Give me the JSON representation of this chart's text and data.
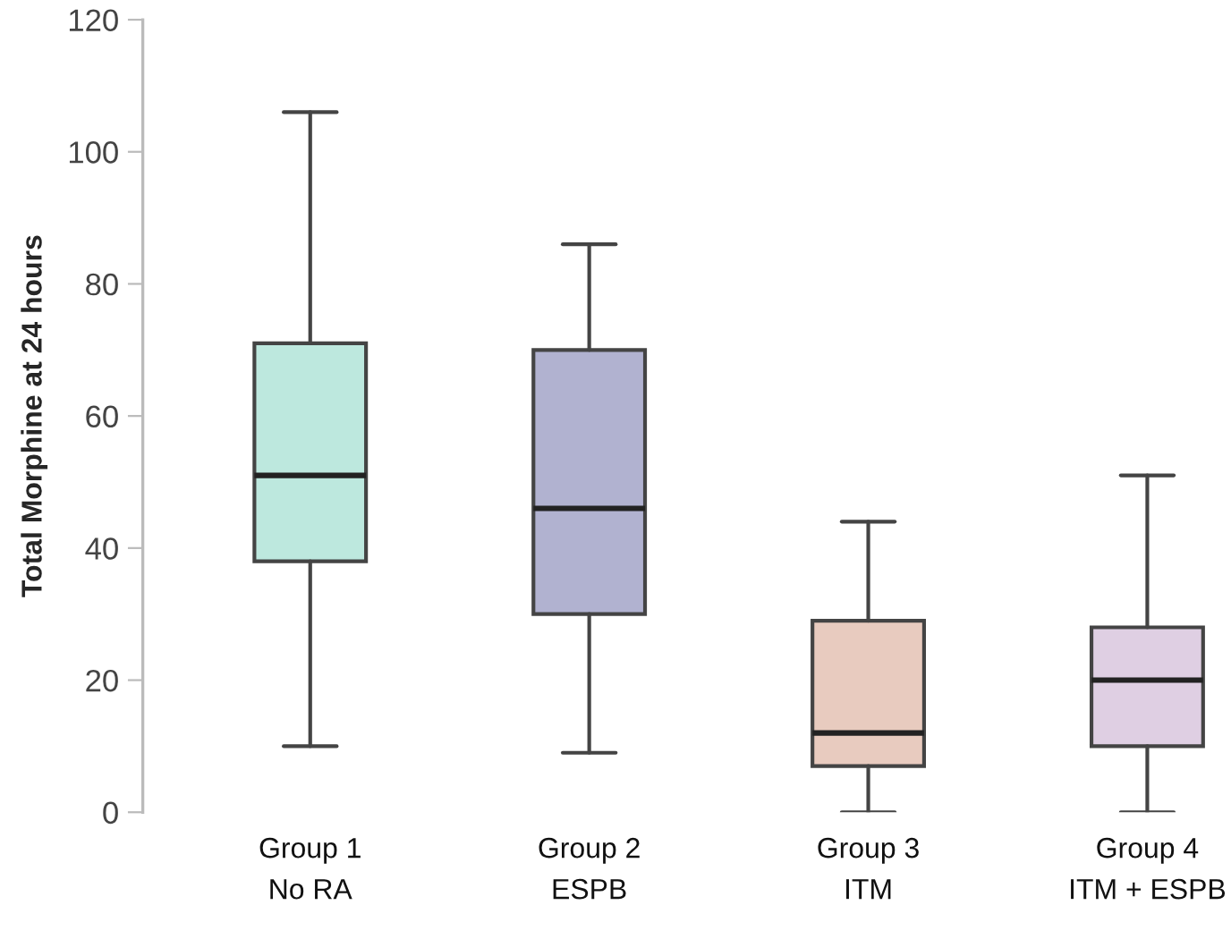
{
  "chart_data": {
    "type": "box",
    "ylabel": "Total Morphine at 24 hours",
    "categories": [
      "Group 1\nNo RA",
      "Group 2\nESPB",
      "Group 3\nITM",
      "Group 4\nITM + ESPB"
    ],
    "colors": [
      "#bde8de",
      "#b1b2d0",
      "#e8cbbf",
      "#dfcfe3"
    ],
    "boxes": [
      {
        "low": 10,
        "q1": 38,
        "median": 51,
        "q3": 71,
        "high": 106
      },
      {
        "low": 9,
        "q1": 30,
        "median": 46,
        "q3": 70,
        "high": 86
      },
      {
        "low": 0,
        "q1": 7,
        "median": 12,
        "q3": 29,
        "high": 44
      },
      {
        "low": 0,
        "q1": 10,
        "median": 20,
        "q3": 28,
        "high": 51
      }
    ],
    "ylim": [
      0,
      120
    ],
    "yticks": [
      0,
      20,
      40,
      60,
      80,
      100,
      120
    ],
    "grid": false
  }
}
